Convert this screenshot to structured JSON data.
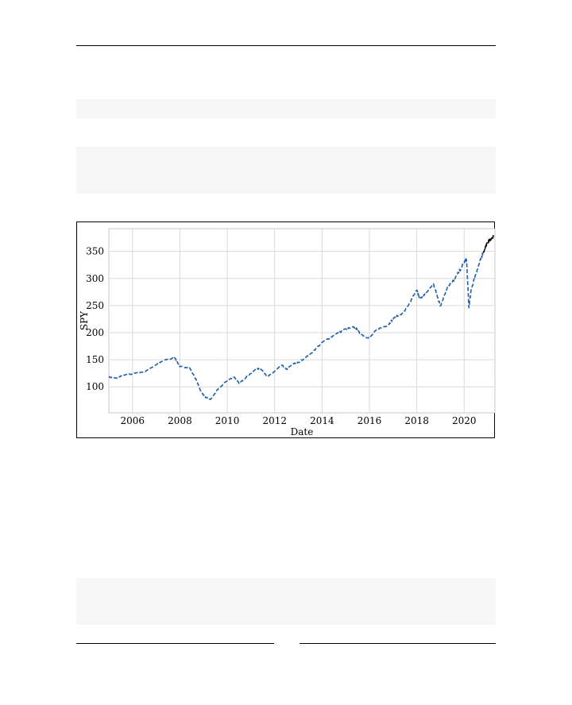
{
  "page": {
    "page_number": ""
  },
  "chart_data": {
    "type": "line",
    "title": "",
    "xlabel": "Date",
    "ylabel": "SPY",
    "grid": true,
    "xlim": [
      2005.0,
      2021.3
    ],
    "ylim": [
      52,
      392
    ],
    "xticks": [
      2006,
      2008,
      2010,
      2012,
      2014,
      2016,
      2018,
      2020
    ],
    "yticks": [
      100,
      150,
      200,
      250,
      300,
      350
    ],
    "series": [
      {
        "style": "dashed",
        "color": "#1f5fa8",
        "x": [
          2005.0,
          2005.3,
          2005.6,
          2006.0,
          2006.5,
          2007.0,
          2007.4,
          2007.8,
          2008.0,
          2008.4,
          2008.7,
          2008.9,
          2009.1,
          2009.3,
          2009.6,
          2010.0,
          2010.3,
          2010.5,
          2010.8,
          2011.2,
          2011.4,
          2011.7,
          2011.9,
          2012.3,
          2012.5,
          2012.8,
          2013.0,
          2013.5,
          2014.0,
          2014.5,
          2015.0,
          2015.4,
          2015.6,
          2016.0,
          2016.3,
          2016.8,
          2017.0,
          2017.5,
          2018.0,
          2018.1,
          2018.3,
          2018.7,
          2018.9,
          2019.0,
          2019.3,
          2019.6,
          2020.0,
          2020.1,
          2020.2,
          2020.3,
          2020.5,
          2020.7,
          2020.8
        ],
        "y": [
          118,
          116,
          121,
          124,
          128,
          141,
          150,
          153,
          137,
          136,
          112,
          90,
          80,
          77,
          95,
          112,
          118,
          106,
          118,
          132,
          134,
          119,
          125,
          140,
          132,
          143,
          145,
          160,
          182,
          195,
          207,
          210,
          198,
          190,
          205,
          215,
          225,
          240,
          278,
          265,
          268,
          290,
          262,
          250,
          285,
          298,
          330,
          335,
          246,
          280,
          310,
          335,
          348
        ]
      },
      {
        "style": "dashed",
        "color": "#000000",
        "x": [
          2020.8,
          2021.0,
          2021.1,
          2021.25
        ],
        "y": [
          348,
          368,
          373,
          378
        ]
      }
    ]
  }
}
